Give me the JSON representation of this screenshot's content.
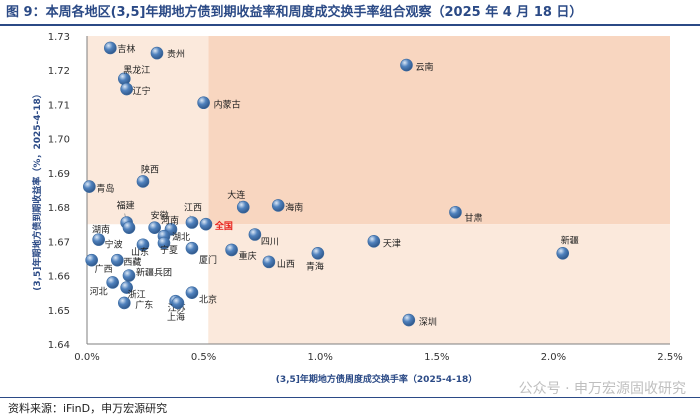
{
  "title": "图 9：本周各地区(3,5]年期地方债到期收益率和周度成交换手率组合观察（2025 年 4 月 18 日）",
  "source": "资料来源：iFinD，申万宏源研究",
  "watermark": "公众号 · 申万宏源固收研究",
  "colors": {
    "title": "#2b4a86",
    "quadrant_light": "#fbe9dc",
    "quadrant_dark": "#f8d6c0",
    "point": "#4f81bd",
    "highlight_label": "#e8211b",
    "axis_label": "#2b4a86"
  },
  "chart_data": {
    "type": "scatter",
    "xlabel": "(3,5]年期地方债周度成交换手率（2025-4-18）",
    "ylabel": "(3,5]年期地方债到期收益率（%，2025-4-18）",
    "xlim": [
      0.0,
      0.025
    ],
    "ylim": [
      1.64,
      1.73
    ],
    "x_ticks": [
      "0.0%",
      "0.5%",
      "1.0%",
      "1.5%",
      "2.0%",
      "2.5%"
    ],
    "y_ticks": [
      "1.64",
      "1.65",
      "1.66",
      "1.67",
      "1.68",
      "1.69",
      "1.70",
      "1.71",
      "1.72",
      "1.73"
    ],
    "reference_lines": {
      "x": 0.0052,
      "y": 1.675
    },
    "points": [
      {
        "name": "吉林",
        "x": 0.001,
        "y": 1.7265
      },
      {
        "name": "贵州",
        "x": 0.003,
        "y": 1.725
      },
      {
        "name": "云南",
        "x": 0.0137,
        "y": 1.7215
      },
      {
        "name": "黑龙江",
        "x": 0.0016,
        "y": 1.7175
      },
      {
        "name": "辽宁",
        "x": 0.0017,
        "y": 1.7145
      },
      {
        "name": "内蒙古",
        "x": 0.005,
        "y": 1.7105
      },
      {
        "name": "陕西",
        "x": 0.0024,
        "y": 1.6875
      },
      {
        "name": "青岛",
        "x": 0.0001,
        "y": 1.686
      },
      {
        "name": "安徽",
        "x": 0.0029,
        "y": 1.674
      },
      {
        "name": "福建",
        "x": 0.0017,
        "y": 1.6755
      },
      {
        "name": "江西",
        "x": 0.0045,
        "y": 1.6755
      },
      {
        "name": "大连",
        "x": 0.0067,
        "y": 1.68
      },
      {
        "name": "海南",
        "x": 0.0082,
        "y": 1.6805
      },
      {
        "name": "甘肃",
        "x": 0.0158,
        "y": 1.6785
      },
      {
        "name": "河南",
        "x": 0.0036,
        "y": 1.6735
      },
      {
        "name": "全国",
        "x": 0.0051,
        "y": 1.675,
        "highlight": true
      },
      {
        "name": "湖南",
        "x": 0.0018,
        "y": 1.674
      },
      {
        "name": "湖北",
        "x": 0.0033,
        "y": 1.6715
      },
      {
        "name": "宁波",
        "x": 0.0005,
        "y": 1.6705
      },
      {
        "name": "四川",
        "x": 0.0072,
        "y": 1.672
      },
      {
        "name": "天津",
        "x": 0.0123,
        "y": 1.67
      },
      {
        "name": "新疆",
        "x": 0.0204,
        "y": 1.6665
      },
      {
        "name": "宁夏",
        "x": 0.0033,
        "y": 1.6695
      },
      {
        "name": "山东",
        "x": 0.0024,
        "y": 1.669
      },
      {
        "name": "厦门",
        "x": 0.0045,
        "y": 1.668
      },
      {
        "name": "重庆",
        "x": 0.0062,
        "y": 1.6675
      },
      {
        "name": "青海",
        "x": 0.0099,
        "y": 1.6665
      },
      {
        "name": "山西",
        "x": 0.0078,
        "y": 1.664
      },
      {
        "name": "西藏",
        "x": 0.0013,
        "y": 1.6645
      },
      {
        "name": "广西",
        "x": 0.0002,
        "y": 1.6645
      },
      {
        "name": "新疆兵团",
        "x": 0.0018,
        "y": 1.66
      },
      {
        "name": "河北",
        "x": 0.0011,
        "y": 1.658
      },
      {
        "name": "浙江",
        "x": 0.0017,
        "y": 1.6565
      },
      {
        "name": "北京",
        "x": 0.0045,
        "y": 1.655
      },
      {
        "name": "广东",
        "x": 0.0016,
        "y": 1.652
      },
      {
        "name": "江苏",
        "x": 0.0038,
        "y": 1.6525
      },
      {
        "name": "上海",
        "x": 0.0039,
        "y": 1.652
      },
      {
        "name": "深圳",
        "x": 0.0138,
        "y": 1.647
      }
    ]
  }
}
